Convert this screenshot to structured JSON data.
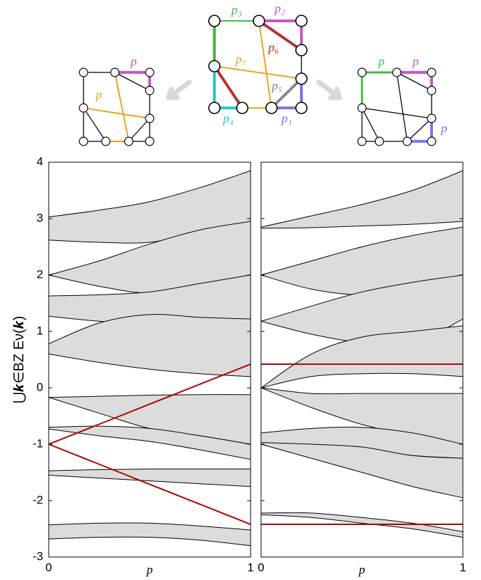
{
  "diagram": {
    "labels": [
      "p₃",
      "p₂",
      "p₆",
      "p₇",
      "p₅",
      "p₄",
      "p₁"
    ],
    "left_labels": [
      "p",
      "p"
    ],
    "right_labels": [
      "p",
      "p",
      "p"
    ]
  },
  "chart_data": [
    {
      "type": "band",
      "ylabel": "⋃𝒌∈BZ Eν(𝒌)",
      "xlabel": "p",
      "x": [
        0,
        0.25,
        0.5,
        0.75,
        1
      ],
      "xlim": [
        0,
        1
      ],
      "ylim": [
        -3,
        4
      ],
      "xticks": [
        0,
        1
      ],
      "yticks": [
        4,
        3,
        2,
        1,
        0,
        -1,
        -2,
        -3
      ],
      "show_ytick_labels": true,
      "fill": "#dcdcdc",
      "bands": [
        {
          "lower": [
            2.62,
            2.58,
            2.58,
            2.75,
            2.87
          ],
          "upper": [
            3.03,
            3.15,
            3.3,
            3.55,
            3.85
          ]
        },
        {
          "lower": [
            2.0,
            1.8,
            1.68,
            1.8,
            2.0
          ],
          "upper": [
            2.0,
            2.25,
            2.55,
            2.8,
            2.95
          ]
        },
        {
          "lower": [
            1.27,
            1.18,
            1.13,
            1.15,
            1.2
          ],
          "upper": [
            1.63,
            1.65,
            1.7,
            1.85,
            2.0
          ]
        },
        {
          "lower": [
            0.6,
            0.45,
            0.33,
            0.25,
            0.2
          ],
          "upper": [
            0.78,
            1.15,
            1.3,
            1.25,
            1.22
          ]
        },
        {
          "lower": [
            -0.17,
            -0.45,
            -0.72,
            -0.85,
            -1.0
          ],
          "upper": [
            -0.17,
            -0.15,
            -0.13,
            -0.12,
            -0.12
          ]
        },
        {
          "lower": [
            -0.73,
            -0.85,
            -0.95,
            -1.1,
            -1.27
          ],
          "upper": [
            -0.7,
            -0.68,
            -0.72,
            -0.85,
            -1.0
          ]
        },
        {
          "lower": [
            -1.55,
            -1.6,
            -1.65,
            -1.7,
            -1.75
          ],
          "upper": [
            -1.47,
            -1.45,
            -1.44,
            -1.44,
            -1.44
          ]
        },
        {
          "lower": [
            -2.68,
            -2.65,
            -2.65,
            -2.7,
            -2.8
          ],
          "upper": [
            -2.43,
            -2.4,
            -2.4,
            -2.45,
            -2.52
          ]
        }
      ],
      "series": [
        {
          "color": "#b00000",
          "values": [
            -1,
            -0.645,
            -0.29,
            0.065,
            0.42
          ]
        },
        {
          "color": "#b00000",
          "values": [
            -1,
            -1.355,
            -1.71,
            -2.065,
            -2.42
          ]
        }
      ]
    },
    {
      "type": "band",
      "xlabel": "p",
      "x": [
        0,
        0.25,
        0.5,
        0.75,
        1
      ],
      "xlim": [
        0,
        1
      ],
      "ylim": [
        -3,
        4
      ],
      "xticks": [
        0,
        1
      ],
      "yticks": [
        4,
        3,
        2,
        1,
        0,
        -1,
        -2,
        -3
      ],
      "show_ytick_labels": false,
      "fill": "#dcdcdc",
      "bands": [
        {
          "lower": [
            2.83,
            2.84,
            2.87,
            2.9,
            2.95
          ],
          "upper": [
            2.85,
            3.05,
            3.25,
            3.5,
            3.85
          ]
        },
        {
          "lower": [
            2.0,
            1.75,
            1.65,
            1.75,
            2.0
          ],
          "upper": [
            2.0,
            2.25,
            2.5,
            2.7,
            2.85
          ]
        },
        {
          "lower": [
            1.18,
            0.95,
            0.8,
            0.78,
            1.22
          ],
          "upper": [
            1.18,
            1.45,
            1.7,
            1.87,
            2.0
          ]
        },
        {
          "lower": [
            0,
            0.2,
            0.25,
            0.25,
            0.2
          ],
          "upper": [
            0,
            0.6,
            0.9,
            1.0,
            1.1
          ]
        },
        {
          "lower": [
            0,
            -0.35,
            -0.65,
            -0.85,
            -1.0
          ],
          "upper": [
            0,
            -0.1,
            -0.1,
            -0.1,
            -0.1
          ]
        },
        {
          "lower": [
            -1.0,
            -1.05,
            -1.1,
            -1.2,
            -1.25
          ],
          "upper": [
            -0.8,
            -0.72,
            -0.7,
            -0.8,
            -1.0
          ]
        },
        {
          "lower": [
            -1.0,
            -1.25,
            -1.5,
            -1.75,
            -1.95
          ],
          "upper": [
            -0.97,
            -1.0,
            -1.05,
            -1.2,
            -1.25
          ]
        },
        {
          "lower": [
            -2.25,
            -2.3,
            -2.4,
            -2.5,
            -2.65
          ],
          "upper": [
            -2.22,
            -2.22,
            -2.3,
            -2.4,
            -2.55
          ]
        }
      ],
      "series": [
        {
          "color": "#b00000",
          "values": [
            0.42,
            0.42,
            0.42,
            0.42,
            0.42
          ]
        },
        {
          "color": "#b00000",
          "values": [
            -2.42,
            -2.42,
            -2.42,
            -2.42,
            -2.42
          ]
        }
      ]
    }
  ]
}
